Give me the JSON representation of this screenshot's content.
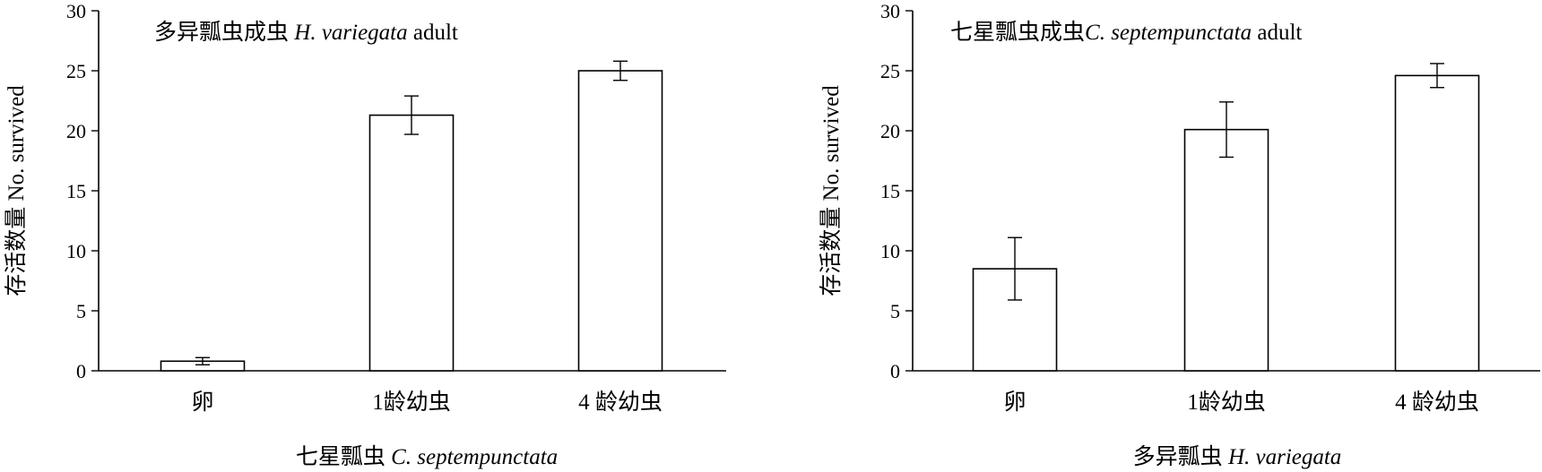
{
  "chart_data": [
    {
      "type": "bar",
      "title": "多异瓢虫成虫 H. variegata adult",
      "title_cn": "多异瓢虫成虫",
      "title_sp": "H. variegata",
      "title_suffix": "adult",
      "xlabel_cn": "七星瓢虫",
      "xlabel_sp": "C. septempunctata",
      "ylabel": "存活数量 No. survived",
      "categories": [
        "卵",
        "1龄幼虫",
        "4 龄幼虫"
      ],
      "values": [
        0.8,
        21.3,
        25.0
      ],
      "errors": [
        0.3,
        1.6,
        0.8
      ],
      "ylim": [
        0,
        30
      ],
      "yticks": [
        "0",
        "5",
        "10",
        "15",
        "20",
        "25",
        "30"
      ],
      "grid": false
    },
    {
      "type": "bar",
      "title": "七星瓢虫成虫C. septempunctata adult",
      "title_cn": "七星瓢虫成虫",
      "title_sp": "C. septempunctata",
      "title_suffix": "adult",
      "xlabel_cn": "多异瓢虫",
      "xlabel_sp": "H. variegata",
      "ylabel": "存活数量 No. survived",
      "categories": [
        "卵",
        "1龄幼虫",
        "4 龄幼虫"
      ],
      "values": [
        8.5,
        20.1,
        24.6
      ],
      "errors": [
        2.6,
        2.3,
        1.0
      ],
      "ylim": [
        0,
        30
      ],
      "yticks": [
        "0",
        "5",
        "10",
        "15",
        "20",
        "25",
        "30"
      ],
      "grid": false
    }
  ]
}
